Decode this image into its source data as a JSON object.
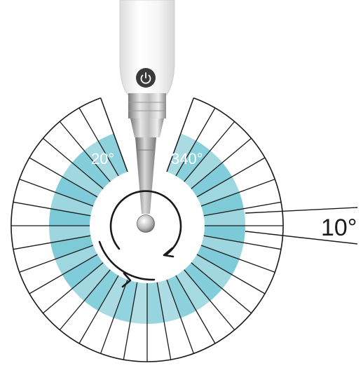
{
  "diagram": {
    "labels": {
      "angle_left": "20°",
      "angle_right": "340°",
      "segment_angle": "10°"
    },
    "dial": {
      "segments": 36,
      "segment_degrees": 10,
      "gap_start_degrees": 340,
      "gap_end_degrees": 20,
      "rotation_direction": "clockwise"
    },
    "icons": [
      "power-icon",
      "rotation-arrow-icon"
    ],
    "colors": {
      "band": "#7ccad8",
      "band_light": "#9dd6df",
      "line": "#1a1a1a",
      "handpiece_body": "#f3f3f3",
      "button": "#3a3a3a",
      "metal": "#c8c8c8"
    }
  }
}
